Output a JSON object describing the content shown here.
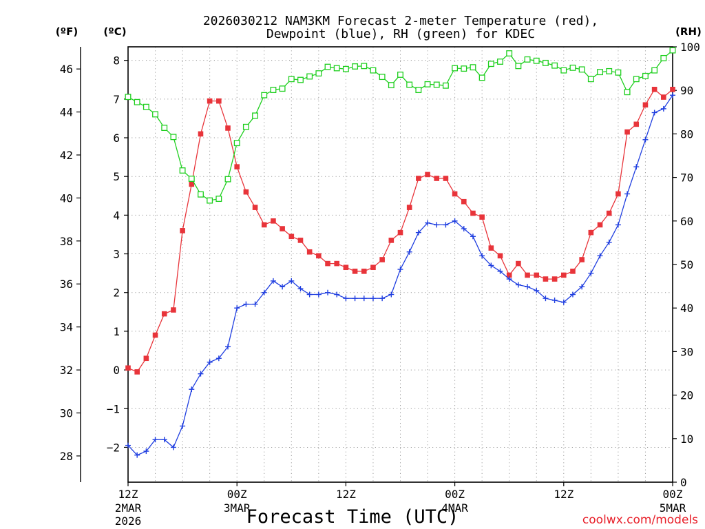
{
  "chart_data": {
    "type": "line",
    "title": "2026030212 NAM3KM Forecast 2-meter Temperature (red), Dewpoint (blue), RH (green) for KDEC",
    "title_lines": [
      "2026030212 NAM3KM Forecast 2-meter Temperature (red),",
      "Dewpoint (blue), RH (green) for KDEC"
    ],
    "xlabel": "Forecast Time (UTC)",
    "credit": "coolwx.com/models",
    "x_units": "forecast hour",
    "xlim": [
      0,
      60
    ],
    "x_ticks": [
      {
        "x": 0,
        "line1": "12Z",
        "line2": "2MAR",
        "line3": "2026"
      },
      {
        "x": 12,
        "line1": "00Z",
        "line2": "3MAR",
        "line3": ""
      },
      {
        "x": 24,
        "line1": "12Z",
        "line2": "",
        "line3": ""
      },
      {
        "x": 36,
        "line1": "00Z",
        "line2": "4MAR",
        "line3": ""
      },
      {
        "x": 48,
        "line1": "12Z",
        "line2": "",
        "line3": ""
      },
      {
        "x": 60,
        "line1": "00Z",
        "line2": "5MAR",
        "line3": ""
      }
    ],
    "axes": {
      "celsius": {
        "unit_label": "(ºC)",
        "ylim": [
          -2.9,
          8.35
        ],
        "ticks": [
          -2,
          -1,
          0,
          1,
          2,
          3,
          4,
          5,
          6,
          7,
          8
        ]
      },
      "fahrenheit": {
        "unit_label": "(ºF)",
        "ticks": [
          28,
          30,
          32,
          34,
          36,
          38,
          40,
          42,
          44,
          46
        ]
      },
      "rh": {
        "unit_label": "(RH)",
        "ylim": [
          0,
          100
        ],
        "ticks": [
          0,
          10,
          20,
          30,
          40,
          50,
          60,
          70,
          80,
          90,
          100
        ]
      }
    },
    "x": [
      0,
      1,
      2,
      3,
      4,
      5,
      6,
      7,
      8,
      9,
      10,
      11,
      12,
      13,
      14,
      15,
      16,
      17,
      18,
      19,
      20,
      21,
      22,
      23,
      24,
      25,
      26,
      27,
      28,
      29,
      30,
      31,
      32,
      33,
      34,
      35,
      36,
      37,
      38,
      39,
      40,
      41,
      42,
      43,
      44,
      45,
      46,
      47,
      48,
      49,
      50,
      51,
      52,
      53,
      54,
      55,
      56,
      57,
      58,
      59,
      60
    ],
    "series": [
      {
        "name": "2-meter Temperature",
        "units": "°C",
        "axis": "celsius",
        "color": "#e8343a",
        "marker": "filled-square",
        "values": [
          0.05,
          -0.05,
          0.3,
          0.9,
          1.45,
          1.55,
          3.6,
          4.8,
          6.1,
          6.95,
          6.95,
          6.25,
          5.25,
          4.6,
          4.2,
          3.75,
          3.85,
          3.65,
          3.45,
          3.35,
          3.05,
          2.95,
          2.75,
          2.75,
          2.65,
          2.55,
          2.55,
          2.65,
          2.85,
          3.35,
          3.55,
          4.2,
          4.95,
          5.05,
          4.95,
          4.95,
          4.55,
          4.35,
          4.05,
          3.95,
          3.15,
          2.95,
          2.45,
          2.75,
          2.45,
          2.45,
          2.35,
          2.35,
          2.45,
          2.55,
          2.85,
          3.55,
          3.75,
          4.05,
          4.55,
          6.15,
          6.35,
          6.85,
          7.25,
          7.05,
          7.25
        ]
      },
      {
        "name": "Dewpoint",
        "units": "°C",
        "axis": "celsius",
        "color": "#1f3ee0",
        "marker": "plus",
        "values": [
          -1.95,
          -2.2,
          -2.1,
          -1.8,
          -1.8,
          -2.0,
          -1.45,
          -0.5,
          -0.1,
          0.2,
          0.3,
          0.6,
          1.6,
          1.7,
          1.7,
          2.0,
          2.3,
          2.15,
          2.3,
          2.1,
          1.95,
          1.95,
          2.0,
          1.95,
          1.85,
          1.85,
          1.85,
          1.85,
          1.85,
          1.95,
          2.6,
          3.05,
          3.55,
          3.8,
          3.75,
          3.75,
          3.85,
          3.65,
          3.45,
          2.95,
          2.7,
          2.55,
          2.35,
          2.2,
          2.15,
          2.05,
          1.85,
          1.8,
          1.75,
          1.95,
          2.15,
          2.5,
          2.95,
          3.3,
          3.75,
          4.55,
          5.25,
          5.95,
          6.65,
          6.75,
          7.1
        ]
      },
      {
        "name": "RH",
        "units": "%",
        "axis": "rh",
        "color": "#1ecf1e",
        "marker": "open-square",
        "values": [
          88.5,
          87.3,
          86.2,
          84.5,
          81.4,
          79.3,
          71.6,
          69.7,
          66.1,
          64.7,
          65.1,
          69.6,
          77.9,
          81.6,
          84.2,
          88.9,
          90.1,
          90.4,
          92.6,
          92.4,
          93.2,
          93.9,
          95.4,
          95.1,
          94.9,
          95.5,
          95.6,
          94.6,
          93.1,
          91.2,
          93.6,
          91.3,
          90.1,
          91.4,
          91.3,
          91.1,
          95.1,
          95.0,
          95.3,
          92.9,
          96.1,
          96.6,
          98.5,
          95.6,
          97.1,
          96.8,
          96.3,
          95.7,
          94.6,
          95.2,
          94.8,
          92.6,
          94.2,
          94.4,
          94.1,
          89.6,
          92.6,
          93.3,
          94.6,
          97.4,
          99.2
        ]
      }
    ]
  }
}
